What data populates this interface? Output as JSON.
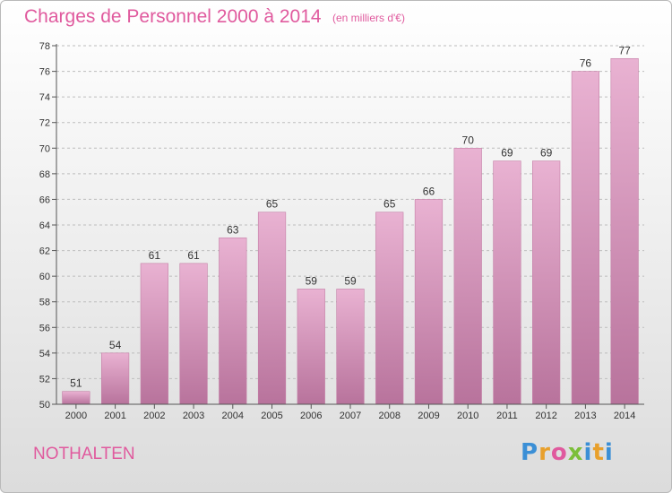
{
  "header": {
    "title": "Charges de Personnel 2000 à 2014",
    "unit": "(en milliers d'€)"
  },
  "footer": {
    "commune": "NOTHALTEN",
    "logo_letters": [
      "P",
      "r",
      "o",
      "x",
      "i",
      "t",
      "i"
    ],
    "logo_colors": [
      "#3b8fd6",
      "#e8a02c",
      "#e05a9e",
      "#7cbf3a",
      "#3b8fd6",
      "#e8a02c",
      "#3b8fd6"
    ]
  },
  "colors": {
    "bar_light": "#e9b2d2",
    "bar_dark": "#b8739c",
    "accent": "#e05a9e"
  },
  "chart_data": {
    "type": "bar",
    "title": "Charges de Personnel 2000 à 2014",
    "subtitle": "(en milliers d'€)",
    "xlabel": "",
    "ylabel": "",
    "categories": [
      "2000",
      "2001",
      "2002",
      "2003",
      "2004",
      "2005",
      "2006",
      "2007",
      "2008",
      "2009",
      "2010",
      "2011",
      "2012",
      "2013",
      "2014"
    ],
    "values": [
      51,
      54,
      61,
      61,
      63,
      65,
      59,
      59,
      65,
      66,
      70,
      69,
      69,
      76,
      77
    ],
    "ylim": [
      50,
      78
    ],
    "yticks": [
      50,
      52,
      54,
      56,
      58,
      60,
      62,
      64,
      66,
      68,
      70,
      72,
      74,
      76,
      78
    ],
    "grid": true,
    "legend": "none"
  }
}
